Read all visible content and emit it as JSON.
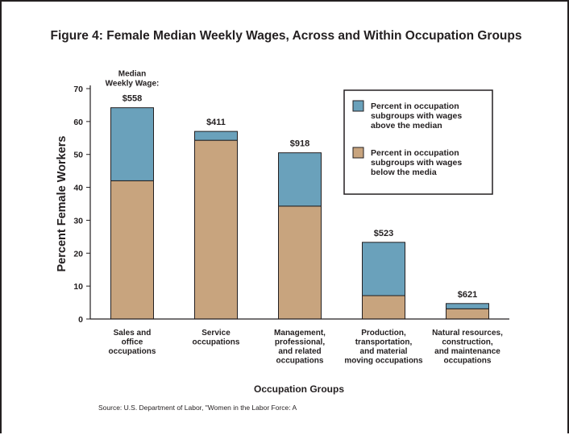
{
  "chart_data": {
    "type": "bar",
    "stacked": true,
    "title": "Figure 4: Female Median Weekly Wages, Across and Within Occupation Groups",
    "xlabel": "Occupation Groups",
    "ylabel": "Percent Female Workers",
    "ylim": [
      0,
      70
    ],
    "yticks": [
      0,
      10,
      20,
      30,
      40,
      50,
      60,
      70
    ],
    "grid": false,
    "legend_position": "top-right",
    "categories": [
      [
        "Sales and",
        "office",
        "occupations"
      ],
      [
        "Service",
        "occupations"
      ],
      [
        "Management,",
        "professional,",
        "and related",
        "occupations"
      ],
      [
        "Production,",
        "transportation,",
        "and material",
        "moving occupations"
      ],
      [
        "Natural resources,",
        "construction,",
        "and maintenance",
        "occupations"
      ]
    ],
    "series": [
      {
        "name": "Percent in occupation subgroups with wages below the media",
        "name_lines": [
          "Percent in occupation",
          "subgroups with wages",
          "below the media"
        ],
        "color": "#c8a47e",
        "values": [
          42,
          54.3,
          34.3,
          7.1,
          3.1
        ]
      },
      {
        "name": "Percent in occupation subgroups with wages above the median",
        "name_lines": [
          "Percent in occupation",
          "subgroups with wages",
          "above the median"
        ],
        "color": "#6aa1bb",
        "values": [
          22.2,
          2.7,
          16.2,
          16.2,
          1.6
        ]
      }
    ],
    "median_wage_heading": [
      "Median",
      "Weekly Wage:"
    ],
    "median_wages": [
      "$558",
      "$411",
      "$918",
      "$523",
      "$621"
    ],
    "source": "Source: U.S. Department of Labor, \"Women in the Labor Force: A"
  }
}
